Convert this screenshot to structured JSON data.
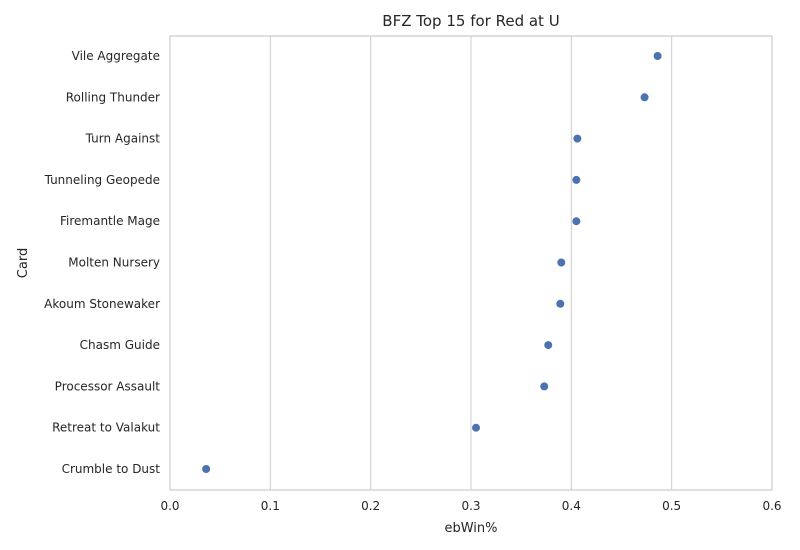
{
  "chart_data": {
    "type": "scatter",
    "title": "BFZ Top 15 for Red at U",
    "xlabel": "ebWin%",
    "ylabel": "Card",
    "xlim": [
      0,
      0.6
    ],
    "xticks": [
      "0.0",
      "0.1",
      "0.2",
      "0.3",
      "0.4",
      "0.5",
      "0.6"
    ],
    "grid": "vertical",
    "legend": "none",
    "color": "#4c72b0",
    "categories": [
      "Vile Aggregate",
      "Rolling Thunder",
      "Turn Against",
      "Tunneling Geopede",
      "Firemantle Mage",
      "Molten Nursery",
      "Akoum Stonewaker",
      "Chasm Guide",
      "Processor Assault",
      "Retreat to Valakut",
      "Crumble to Dust"
    ],
    "values": [
      0.486,
      0.473,
      0.406,
      0.405,
      0.405,
      0.39,
      0.389,
      0.377,
      0.373,
      0.305,
      0.036
    ]
  }
}
